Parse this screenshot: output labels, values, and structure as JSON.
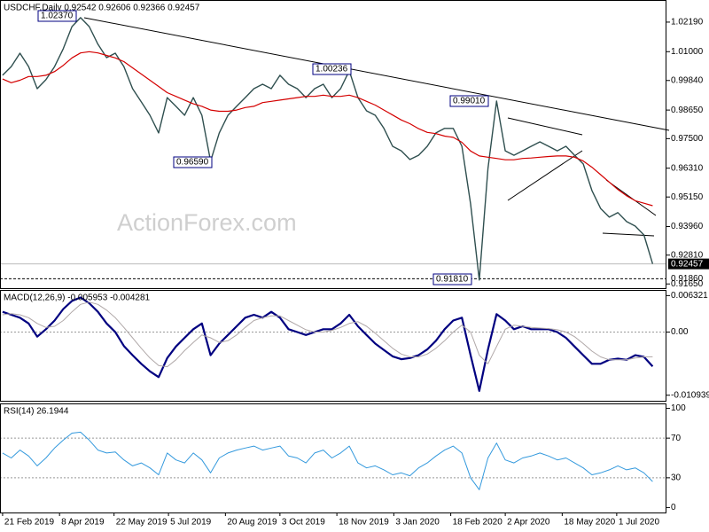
{
  "chart_data": [
    {
      "type": "line",
      "title": "USDCHF,Daily  0.92542 0.92606 0.92366 0.92457",
      "watermark": "ActionForex.com",
      "x": [
        0,
        1,
        2,
        3,
        4,
        5,
        6,
        7,
        8,
        9,
        10,
        11,
        12,
        13,
        14,
        15,
        16,
        17,
        18,
        19,
        20,
        21,
        22,
        23,
        24,
        25,
        26,
        27,
        28,
        29,
        30,
        31,
        32,
        33,
        34,
        35,
        36,
        37,
        38,
        39,
        40,
        41,
        42,
        43,
        44,
        45,
        46,
        47,
        48,
        49,
        50,
        51,
        52,
        53,
        54,
        55,
        56,
        57,
        58,
        59,
        60,
        61,
        62,
        63,
        64,
        65,
        66,
        67,
        68,
        69,
        70,
        71,
        72,
        73,
        74,
        75
      ],
      "xlim": [
        -0.3,
        76.6
      ],
      "ylim": [
        0.9148,
        1.0308
      ],
      "yticks": [
        {
          "value": 1.0219,
          "label": "1.02190"
        },
        {
          "value": 1.01,
          "label": "1.01000"
        },
        {
          "value": 0.9984,
          "label": "0.99840"
        },
        {
          "value": 0.9865,
          "label": "0.98650"
        },
        {
          "value": 0.975,
          "label": "0.97500"
        },
        {
          "value": 0.9631,
          "label": "0.96310"
        },
        {
          "value": 0.9515,
          "label": "0.95150"
        },
        {
          "value": 0.9396,
          "label": "0.93960"
        },
        {
          "value": 0.9281,
          "label": "0.92810"
        },
        {
          "value": 0.9165,
          "label": "0.91650"
        }
      ],
      "hlines": [
        {
          "value": 0.92457,
          "label": "0.92457",
          "style": "solid"
        },
        {
          "value": 0.9186,
          "label": "0.91860",
          "style": "dashed"
        }
      ],
      "annotations": [
        "1.02370",
        "1.00236",
        "0.99010",
        "0.96590",
        "0.91810"
      ],
      "series": [
        {
          "name": "USDCHF",
          "color": "#2f4f4f",
          "width": 1.4,
          "values": [
            1.0005,
            1.004,
            1.0094,
            1.004,
            0.9951,
            0.9987,
            1.004,
            1.0112,
            1.0201,
            1.0237,
            1.0201,
            1.013,
            1.0076,
            1.0094,
            1.004,
            0.9951,
            0.9898,
            0.9844,
            0.9773,
            0.9915,
            0.988,
            0.9844,
            0.9915,
            0.9844,
            0.9659,
            0.9773,
            0.9844,
            0.988,
            0.9915,
            0.9951,
            0.9969,
            0.9951,
            1.0005,
            0.9969,
            0.9951,
            0.9915,
            0.9951,
            0.9969,
            0.9915,
            0.9951,
            1.0023,
            0.9915,
            0.9862,
            0.9844,
            0.9791,
            0.9719,
            0.9701,
            0.9666,
            0.9683,
            0.9719,
            0.9773,
            0.9791,
            0.9791,
            0.9719,
            0.9487,
            0.9181,
            0.963,
            0.9901,
            0.9701,
            0.9683,
            0.9701,
            0.9719,
            0.9737,
            0.9719,
            0.9701,
            0.9719,
            0.9683,
            0.9648,
            0.9541,
            0.9469,
            0.9434,
            0.9452,
            0.9416,
            0.9398,
            0.9362,
            0.92457
          ]
        },
        {
          "name": "MA",
          "color": "#d40000",
          "width": 1.2,
          "values": [
            0.999,
            0.9975,
            0.9985,
            1.0,
            1.0,
            1.0005,
            1.002,
            1.0045,
            1.0075,
            1.0095,
            1.01,
            1.0095,
            1.0085,
            1.0075,
            1.006,
            1.0035,
            1.001,
            0.9985,
            0.996,
            0.9935,
            0.992,
            0.9905,
            0.989,
            0.988,
            0.9865,
            0.986,
            0.986,
            0.9865,
            0.9875,
            0.988,
            0.9895,
            0.99,
            0.9905,
            0.991,
            0.9915,
            0.992,
            0.992,
            0.9925,
            0.992,
            0.992,
            0.9925,
            0.9915,
            0.99,
            0.9885,
            0.9865,
            0.9845,
            0.9825,
            0.981,
            0.979,
            0.9775,
            0.977,
            0.976,
            0.9755,
            0.9735,
            0.97,
            0.968,
            0.9675,
            0.967,
            0.9665,
            0.9665,
            0.967,
            0.9672,
            0.9675,
            0.9678,
            0.968,
            0.968,
            0.9675,
            0.966,
            0.9635,
            0.9605,
            0.9575,
            0.9545,
            0.952,
            0.95,
            0.949,
            0.948
          ]
        }
      ]
    },
    {
      "type": "line",
      "title": "MACD(12,26,9) -0.005953 -0.004281",
      "ylim": [
        -0.0119,
        0.0073
      ],
      "yticks": [
        0.006321,
        {
          "value": 0,
          "label": "0.00"
        },
        -0.010939
      ],
      "levels": [
        0
      ],
      "series": [
        {
          "name": "MACD",
          "color": "#000080",
          "width": 2.2,
          "values": [
            0.0035,
            0.003,
            0.0025,
            0.0015,
            -0.0008,
            0.0005,
            0.002,
            0.004,
            0.0054,
            0.006,
            0.005,
            0.0035,
            0.0015,
            0.0,
            -0.0024,
            -0.004,
            -0.0055,
            -0.0068,
            -0.0078,
            -0.0045,
            -0.0025,
            -0.001,
            0.0005,
            0.0015,
            -0.004,
            -0.002,
            -0.0005,
            0.001,
            0.0025,
            0.003,
            0.0025,
            0.0035,
            0.0025,
            0.0005,
            0.0,
            -0.0005,
            0.0,
            0.0005,
            0.0005,
            0.0015,
            0.003,
            0.001,
            -0.0005,
            -0.002,
            -0.0031,
            -0.0042,
            -0.0047,
            -0.0045,
            -0.004,
            -0.003,
            -0.0015,
            0.0005,
            0.002,
            0.0025,
            -0.004,
            -0.0102,
            -0.003,
            0.0031,
            0.002,
            0.0005,
            0.001,
            0.0005,
            0.0005,
            0.0005,
            0.0,
            -0.001,
            -0.0025,
            -0.004,
            -0.0055,
            -0.0055,
            -0.0048,
            -0.0046,
            -0.0048,
            -0.004,
            -0.0043,
            -0.005953
          ]
        },
        {
          "name": "Signal",
          "color": "#b0a8a8",
          "width": 1,
          "values": [
            0.003,
            0.0032,
            0.003,
            0.0025,
            0.0015,
            0.0008,
            0.001,
            0.002,
            0.0035,
            0.0048,
            0.0052,
            0.0048,
            0.0038,
            0.0025,
            0.0008,
            -0.001,
            -0.0028,
            -0.0045,
            -0.0058,
            -0.006,
            -0.0048,
            -0.0032,
            -0.0018,
            -0.0005,
            -0.001,
            -0.0018,
            -0.0015,
            -0.0005,
            0.0008,
            0.002,
            0.0025,
            0.0028,
            0.0028,
            0.002,
            0.0012,
            0.0004,
            0.0,
            0.0,
            0.0003,
            0.0008,
            0.0015,
            0.0018,
            0.001,
            -0.0002,
            -0.0015,
            -0.0028,
            -0.0038,
            -0.0043,
            -0.0043,
            -0.0038,
            -0.0028,
            -0.0015,
            0.0,
            0.0012,
            0.0,
            -0.004,
            -0.0055,
            -0.0025,
            0.0005,
            0.0012,
            0.001,
            0.0008,
            0.0007,
            0.0006,
            0.0004,
            0.0,
            -0.0008,
            -0.002,
            -0.0033,
            -0.0043,
            -0.0048,
            -0.0048,
            -0.0048,
            -0.0045,
            -0.0043,
            -0.004281
          ]
        }
      ]
    },
    {
      "type": "line",
      "title": "RSI(14) 26.1944",
      "ylim": [
        -5,
        105
      ],
      "yticks": [
        100,
        70,
        30,
        0
      ],
      "levels": [
        70,
        30
      ],
      "xticks": [
        {
          "value": 0,
          "label": "21 Feb 2019"
        },
        {
          "value": 6.57,
          "label": "8 Apr 2019"
        },
        {
          "value": 12.86,
          "label": "22 May 2019"
        },
        {
          "value": 19.14,
          "label": "5 Jul 2019"
        },
        {
          "value": 25.71,
          "label": "20 Aug 2019"
        },
        {
          "value": 32,
          "label": "3 Oct 2019"
        },
        {
          "value": 38.57,
          "label": "18 Nov 2019"
        },
        {
          "value": 45.14,
          "label": "3 Jan 2020"
        },
        {
          "value": 51.71,
          "label": "18 Feb 2020"
        },
        {
          "value": 58,
          "label": "2 Apr 2020"
        },
        {
          "value": 64.57,
          "label": "18 May 2020"
        },
        {
          "value": 70.86,
          "label": "1 Jul 2020"
        }
      ],
      "series": [
        {
          "name": "RSI",
          "color": "#3399dd",
          "width": 1,
          "values": [
            55,
            50,
            58,
            52,
            42,
            50,
            60,
            68,
            75,
            76,
            68,
            58,
            55,
            56,
            48,
            42,
            45,
            40,
            33,
            55,
            48,
            45,
            55,
            48,
            35,
            50,
            55,
            58,
            60,
            62,
            58,
            60,
            62,
            52,
            50,
            45,
            55,
            58,
            50,
            55,
            62,
            45,
            40,
            42,
            38,
            33,
            35,
            32,
            40,
            45,
            52,
            58,
            62,
            55,
            30,
            18,
            50,
            65,
            48,
            45,
            50,
            52,
            55,
            52,
            48,
            50,
            45,
            40,
            33,
            35,
            38,
            42,
            38,
            40,
            35,
            26.1944
          ]
        }
      ]
    }
  ]
}
